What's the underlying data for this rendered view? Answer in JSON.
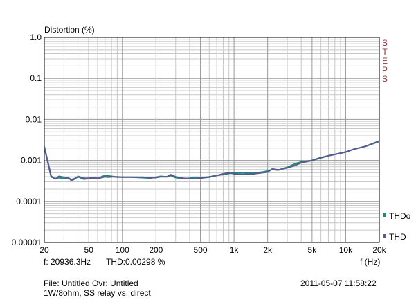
{
  "chart_data": {
    "type": "line",
    "title": "Distortion (%)",
    "xlabel": "f (Hz)",
    "ylabel": "Distortion (%)",
    "x_scale": "log",
    "y_scale": "log",
    "xlim": [
      20,
      20000
    ],
    "ylim": [
      1e-05,
      1
    ],
    "grid": true,
    "x_ticks": [
      20,
      50,
      100,
      200,
      500,
      1000,
      2000,
      5000,
      10000,
      20000
    ],
    "x_tick_labels": [
      "20",
      "50",
      "100",
      "200",
      "500",
      "1k",
      "2k",
      "5k",
      "10k",
      "20k"
    ],
    "y_ticks": [
      1,
      0.1,
      0.01,
      0.001,
      0.0001,
      1e-05
    ],
    "y_tick_labels": [
      "1.0",
      "0.1",
      "0.01",
      "0.001",
      "0.0001",
      "0.00001"
    ],
    "side_label": "STEPS",
    "legend_position": "right",
    "series": [
      {
        "name": "THDo",
        "color": "#1a8a7e",
        "x": [
          20,
          23,
          25,
          27,
          30,
          33,
          35,
          38,
          40,
          45,
          50,
          55,
          60,
          65,
          70,
          75,
          80,
          90,
          100,
          120,
          150,
          180,
          200,
          220,
          250,
          270,
          300,
          350,
          400,
          450,
          500,
          600,
          700,
          800,
          900,
          1000,
          1200,
          1500,
          1800,
          2000,
          2200,
          2500,
          3000,
          3500,
          4000,
          5000,
          6000,
          7000,
          8000,
          10000,
          12000,
          15000,
          20000
        ],
        "y": [
          0.0021,
          0.0004,
          0.00036,
          0.00038,
          0.00036,
          0.00037,
          0.00034,
          0.00037,
          0.0004,
          0.00035,
          0.00036,
          0.00037,
          0.00036,
          0.0004,
          0.00043,
          0.00042,
          0.00041,
          0.00039,
          0.00039,
          0.00039,
          0.00038,
          0.00037,
          0.00039,
          0.00041,
          0.0004,
          0.00043,
          0.00038,
          0.00036,
          0.00037,
          0.00039,
          0.00038,
          0.0004,
          0.00043,
          0.00045,
          0.00048,
          0.0005,
          0.0005,
          0.00049,
          0.00052,
          0.00055,
          0.0006,
          0.00058,
          0.00068,
          0.00082,
          0.00092,
          0.001,
          0.00115,
          0.0013,
          0.0014,
          0.0016,
          0.0019,
          0.0022,
          0.0029
        ]
      },
      {
        "name": "THD",
        "color": "#5a5a8c",
        "x": [
          20,
          23,
          25,
          27,
          30,
          33,
          35,
          38,
          40,
          45,
          50,
          55,
          60,
          65,
          70,
          75,
          80,
          90,
          100,
          120,
          150,
          180,
          200,
          220,
          250,
          270,
          300,
          350,
          400,
          450,
          500,
          600,
          700,
          800,
          900,
          1000,
          1200,
          1500,
          1800,
          2000,
          2200,
          2500,
          3000,
          3500,
          4000,
          5000,
          6000,
          7000,
          8000,
          10000,
          12000,
          15000,
          20000
        ],
        "y": [
          0.0022,
          0.00042,
          0.00035,
          0.00041,
          0.00039,
          0.00038,
          0.00032,
          0.00036,
          0.00041,
          0.00037,
          0.00037,
          0.00038,
          0.00037,
          0.00038,
          0.0004,
          0.00039,
          0.0004,
          0.0004,
          0.00039,
          0.00039,
          0.00039,
          0.00038,
          0.00038,
          0.0004,
          0.0004,
          0.00045,
          0.0004,
          0.00037,
          0.00036,
          0.00036,
          0.00037,
          0.00039,
          0.00043,
          0.00047,
          0.0005,
          0.00047,
          0.00046,
          0.00047,
          0.0005,
          0.00052,
          0.00062,
          0.00059,
          0.00066,
          0.00075,
          0.00088,
          0.001,
          0.00118,
          0.0013,
          0.0014,
          0.0016,
          0.0019,
          0.0022,
          0.003
        ]
      }
    ]
  },
  "readout": {
    "cursor_freq": "f: 20936.3Hz",
    "cursor_thd": "THD:0.00298  %"
  },
  "footer": {
    "file_info": "File: Untitled   Ovr: Untitled",
    "description": "1W/8ohm, SS relay vs. direct",
    "timestamp": "2011-05-07 11:58:22"
  }
}
